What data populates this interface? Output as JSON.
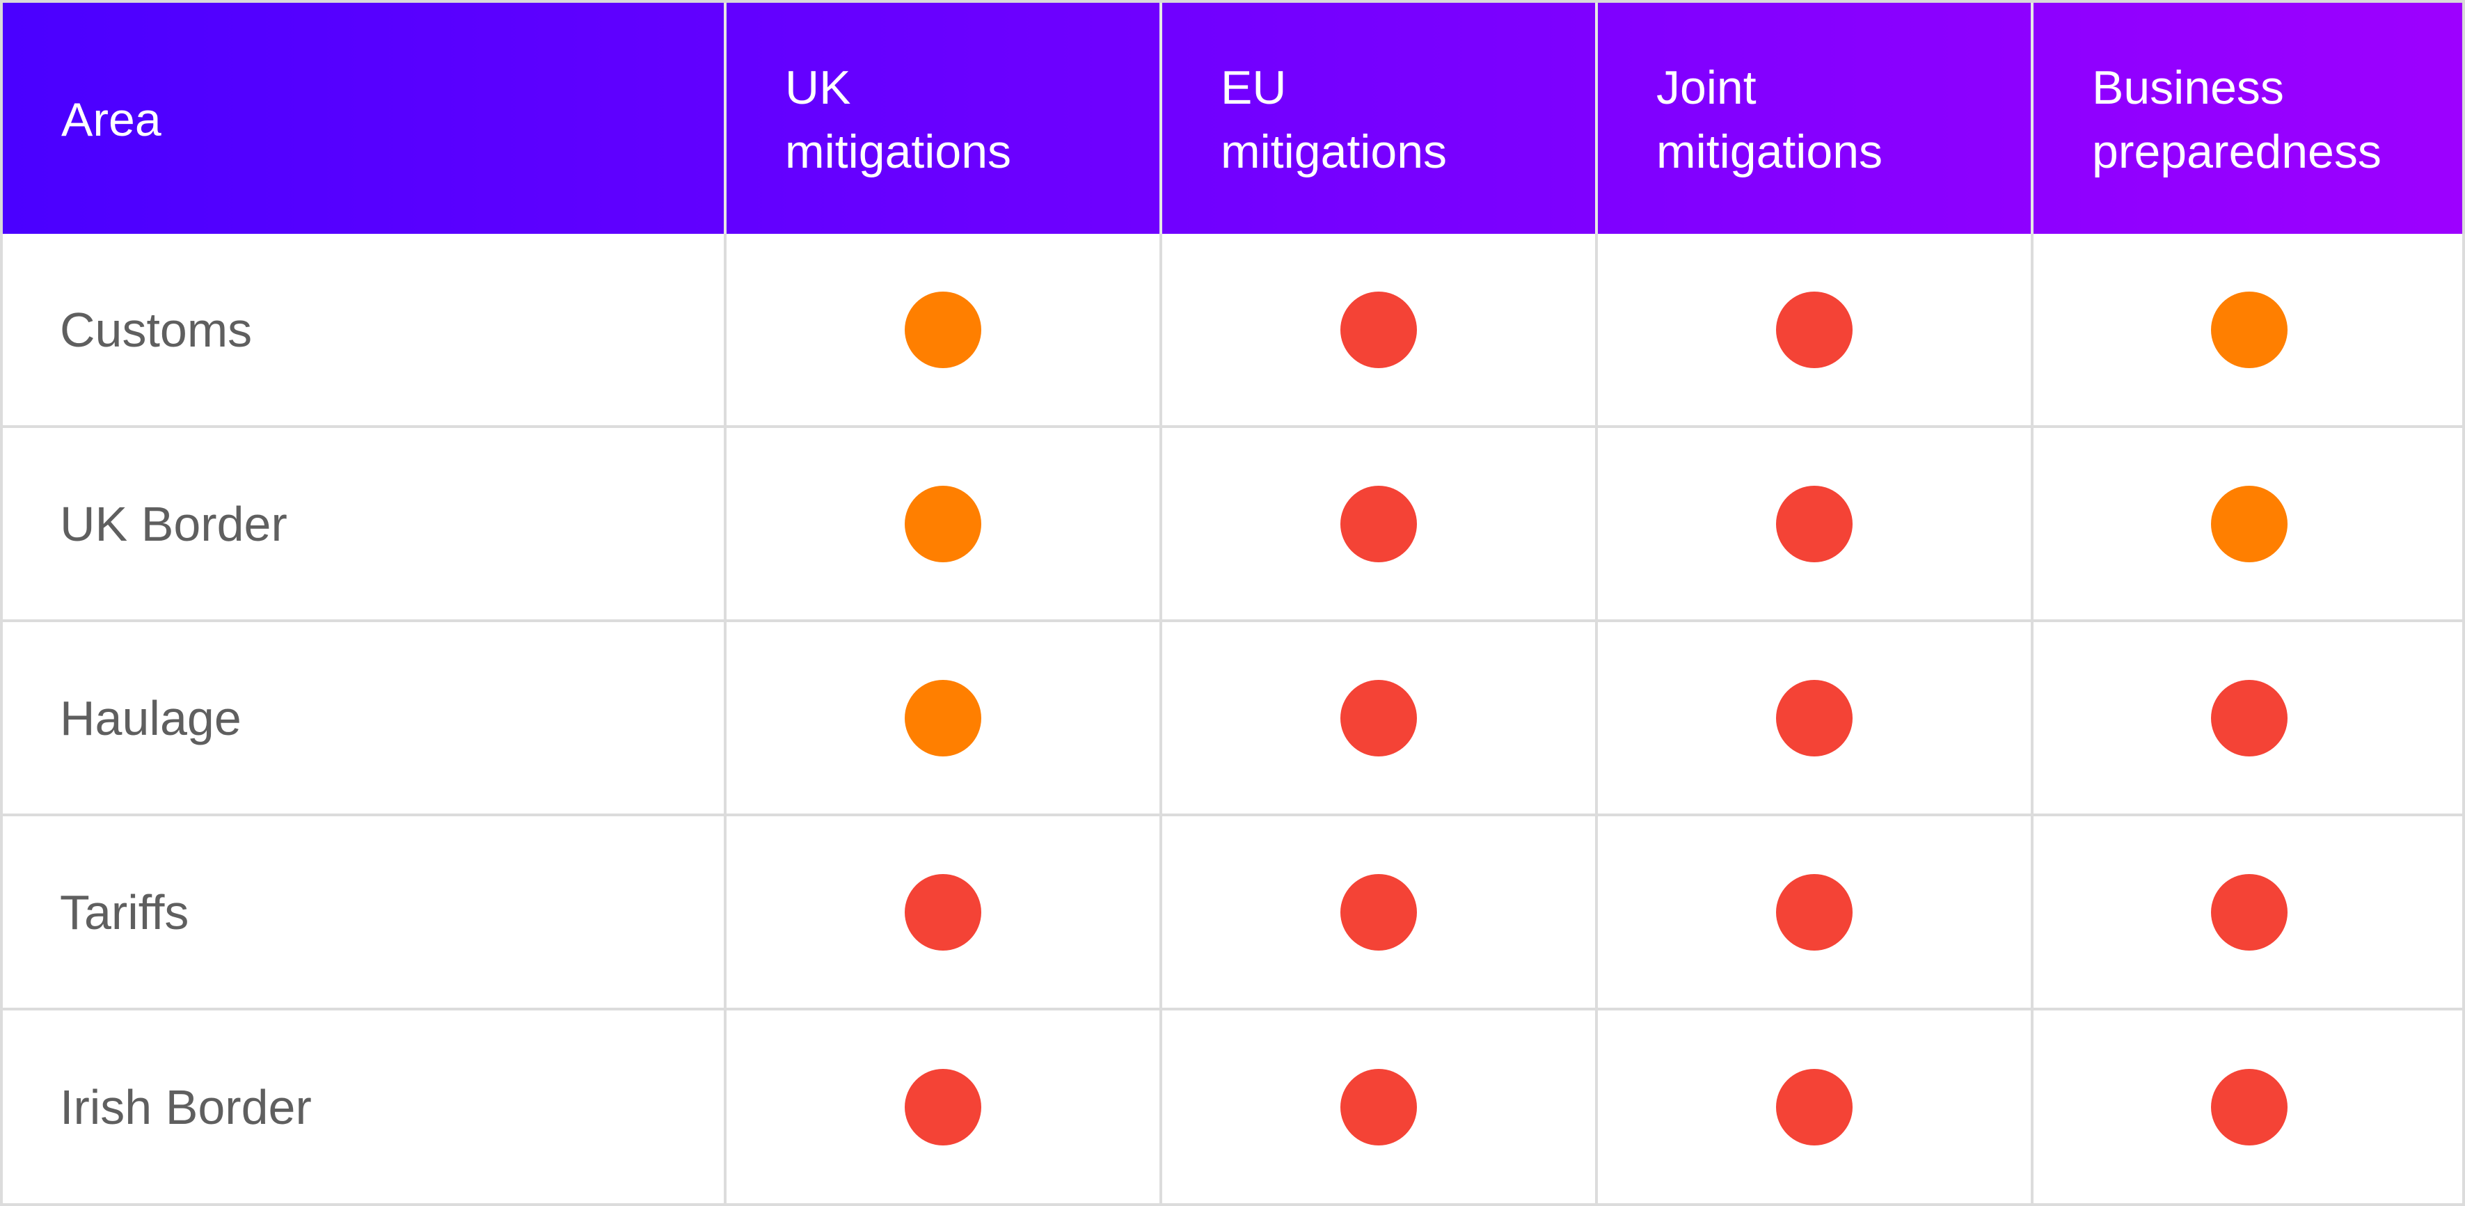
{
  "colors": {
    "amber": "#ff7f00",
    "red": "#f44336"
  },
  "table": {
    "headers": [
      "Area",
      "UK\nmitigations",
      "EU\nmitigations",
      "Joint\nmitigations",
      "Business\npreparedness"
    ],
    "rows": [
      {
        "area": "Customs",
        "statuses": [
          "amber",
          "red",
          "red",
          "amber"
        ]
      },
      {
        "area": "UK Border",
        "statuses": [
          "amber",
          "red",
          "red",
          "amber"
        ]
      },
      {
        "area": "Haulage",
        "statuses": [
          "amber",
          "red",
          "red",
          "red"
        ]
      },
      {
        "area": "Tariffs",
        "statuses": [
          "red",
          "red",
          "red",
          "red"
        ]
      },
      {
        "area": "Irish Border",
        "statuses": [
          "red",
          "red",
          "red",
          "red"
        ]
      }
    ]
  }
}
